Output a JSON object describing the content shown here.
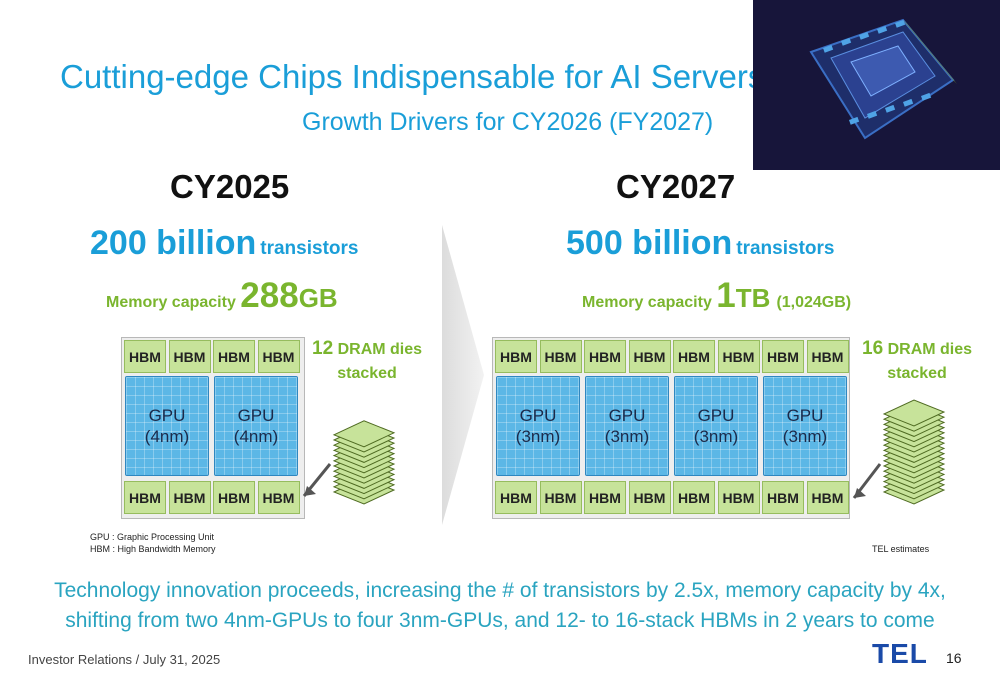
{
  "slide": {
    "title": "Cutting-edge Chips Indispensable for AI Servers",
    "subtitle": "Growth Drivers for CY2026 (FY2027)"
  },
  "left": {
    "year": "CY2025",
    "transistors_value": "200 billion",
    "transistors_unit": "transistors",
    "memory_label": "Memory capacity",
    "memory_value": "288",
    "memory_unit": "GB",
    "hbm_label": "HBM",
    "gpu_label": "GPU",
    "gpu_node": "(4nm)",
    "dies_num": "12",
    "dies_text": "DRAM dies",
    "stacked": "stacked",
    "gpu_count": 2,
    "stack_layers": 12
  },
  "right": {
    "year": "CY2027",
    "transistors_value": "500 billion",
    "transistors_unit": "transistors",
    "memory_label": "Memory capacity",
    "memory_value": "1",
    "memory_unit": "TB",
    "memory_paren": "(1,024GB)",
    "hbm_label": "HBM",
    "gpu_label": "GPU",
    "gpu_node": "(3nm)",
    "dies_num": "16",
    "dies_text": "DRAM dies",
    "stacked": "stacked",
    "gpu_count": 4,
    "stack_layers": 16
  },
  "notes": {
    "gpu": "GPU : Graphic Processing Unit",
    "hbm": "HBM : High Bandwidth Memory",
    "estimates": "TEL estimates"
  },
  "summary": {
    "line1": "Technology innovation proceeds, increasing the # of transistors by 2.5x, memory capacity by 4x,",
    "line2": "shifting from two 4nm-GPUs to four 3nm-GPUs, and 12- to 16-stack HBMs in 2 years to come"
  },
  "footer": {
    "ir": "Investor Relations / July 31, 2025",
    "logo": "TEL",
    "page": "16"
  },
  "colors": {
    "title_blue": "#1a9ed8",
    "memory_green": "#7ab52e",
    "hbm_green": "#c7e39a",
    "gpu_blue": "#5cb7e6",
    "summary_teal": "#2aa4c0",
    "logo_blue": "#1a4aa8"
  }
}
